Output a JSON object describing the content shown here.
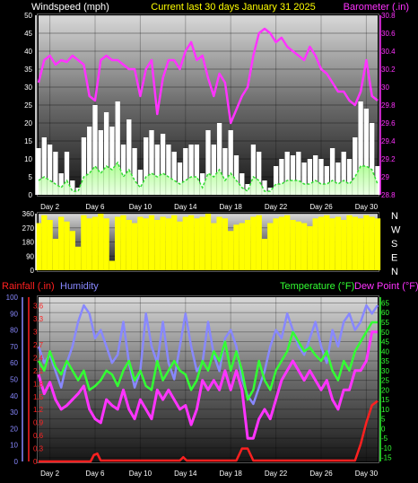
{
  "colors": {
    "wind_gust": "#ffffff",
    "wind_avg": "#33dd33",
    "barometer": "#ff33ff",
    "direction": "#ffff00",
    "temperature": "#33ff33",
    "dewpoint": "#ff33ff",
    "humidity": "#8888ff",
    "rainfall": "#ff2020",
    "title": "#ffff00"
  },
  "chart_data": [
    {
      "type": "area",
      "title": "Current last 30 days January 31 2025",
      "left_axis_label": "Windspeed (mph)",
      "right_axis_label": "Barometer (.in)",
      "left_ticks": [
        0,
        5,
        10,
        15,
        20,
        25,
        30,
        35,
        40,
        45,
        50
      ],
      "right_ticks": [
        28.8,
        29,
        29.2,
        29.4,
        29.6,
        29.8,
        30,
        30.2,
        30.4,
        30.6,
        30.8
      ],
      "ylim_left": [
        0,
        50
      ],
      "ylim_right": [
        28.8,
        30.8
      ],
      "x_ticks": [
        "Day 2",
        "Day 6",
        "Day 10",
        "Day 14",
        "Day 18",
        "Day 22",
        "Day 26",
        "Day 30"
      ],
      "x_range_days": [
        1,
        31
      ],
      "series": [
        {
          "name": "Barometer",
          "axis": "right",
          "x": [
            1,
            1.5,
            2,
            2.5,
            3,
            3.5,
            4,
            4.5,
            5,
            5.5,
            6,
            6.5,
            7,
            7.5,
            8,
            8.5,
            9,
            9.5,
            10,
            10.5,
            11,
            11.5,
            12,
            12.5,
            13,
            13.5,
            14,
            14.5,
            15,
            15.5,
            16,
            16.5,
            17,
            17.5,
            18,
            18.5,
            19,
            19.5,
            20,
            20.5,
            21,
            21.5,
            22,
            22.5,
            23,
            23.5,
            24,
            24.5,
            25,
            25.5,
            26,
            26.5,
            27,
            27.5,
            28,
            28.5,
            29,
            29.5,
            30,
            30.5,
            31
          ],
          "values": [
            30.05,
            30.3,
            30.35,
            30.25,
            30.3,
            30.28,
            30.35,
            30.3,
            30.25,
            29.9,
            29.85,
            30.3,
            30.35,
            30.3,
            30.3,
            30.25,
            30.2,
            30.2,
            29.9,
            30.2,
            30.3,
            29.7,
            30.1,
            30.3,
            30.3,
            30.2,
            30.4,
            30.5,
            30.3,
            30.35,
            30.1,
            29.9,
            30.15,
            30.05,
            29.6,
            29.75,
            29.9,
            30.0,
            30.35,
            30.6,
            30.65,
            30.6,
            30.5,
            30.55,
            30.45,
            30.4,
            30.35,
            30.3,
            30.45,
            30.35,
            30.2,
            30.15,
            30.05,
            29.95,
            29.95,
            29.85,
            29.8,
            29.95,
            30.3,
            29.9,
            29.85
          ]
        },
        {
          "name": "Wind gust",
          "axis": "left",
          "x": [
            1,
            1.5,
            2,
            2.5,
            3,
            3.5,
            4,
            4.5,
            5,
            5.5,
            6,
            6.5,
            7,
            7.5,
            8,
            8.5,
            9,
            9.5,
            10,
            10.5,
            11,
            11.5,
            12,
            12.5,
            13,
            13.5,
            14,
            14.5,
            15,
            15.5,
            16,
            16.5,
            17,
            17.5,
            18,
            18.5,
            19,
            19.5,
            20,
            20.5,
            21,
            21.5,
            22,
            22.5,
            23,
            23.5,
            24,
            24.5,
            25,
            25.5,
            26,
            26.5,
            27,
            27.5,
            28,
            28.5,
            29,
            29.5,
            30,
            30.5,
            31
          ],
          "values": [
            13,
            16,
            14,
            12,
            6,
            12,
            4,
            2,
            16,
            19,
            25,
            18,
            23,
            19,
            26,
            14,
            21,
            13,
            7,
            16,
            18,
            14,
            17,
            14,
            12,
            9,
            13,
            14,
            14,
            6,
            18,
            14,
            20,
            13,
            18,
            11,
            6,
            3,
            14,
            12,
            4,
            2,
            8,
            10,
            12,
            11,
            12,
            9,
            10,
            11,
            10,
            8,
            13,
            9,
            12,
            10,
            16,
            26,
            24,
            20,
            8
          ]
        },
        {
          "name": "Wind average",
          "axis": "left",
          "x": [
            1,
            1.5,
            2,
            2.5,
            3,
            3.5,
            4,
            4.5,
            5,
            5.5,
            6,
            6.5,
            7,
            7.5,
            8,
            8.5,
            9,
            9.5,
            10,
            10.5,
            11,
            11.5,
            12,
            12.5,
            13,
            13.5,
            14,
            14.5,
            15,
            15.5,
            16,
            16.5,
            17,
            17.5,
            18,
            18.5,
            19,
            19.5,
            20,
            20.5,
            21,
            21.5,
            22,
            22.5,
            23,
            23.5,
            24,
            24.5,
            25,
            25.5,
            26,
            26.5,
            27,
            27.5,
            28,
            28.5,
            29,
            29.5,
            30,
            30.5,
            31
          ],
          "values": [
            4,
            5,
            4,
            3,
            2,
            4,
            1,
            1,
            5,
            6,
            8,
            6,
            8,
            7,
            9,
            5,
            7,
            4,
            2,
            5,
            6,
            5,
            6,
            5,
            4,
            3,
            4,
            5,
            5,
            2,
            6,
            5,
            7,
            4,
            6,
            4,
            2,
            1,
            5,
            4,
            1,
            1,
            3,
            3,
            4,
            4,
            4,
            3,
            3,
            4,
            3,
            3,
            4,
            3,
            4,
            3,
            5,
            8,
            8,
            7,
            3
          ]
        }
      ]
    },
    {
      "type": "bar",
      "left_ticks": [
        0,
        90,
        180,
        270,
        360
      ],
      "right_labels": [
        "N",
        "W",
        "S",
        "E",
        "N"
      ],
      "ylim": [
        0,
        360
      ],
      "series": [
        {
          "name": "Wind direction",
          "x": [
            1,
            1.5,
            2,
            2.5,
            3,
            3.5,
            4,
            4.5,
            5,
            5.5,
            6,
            6.5,
            7,
            7.5,
            8,
            8.5,
            9,
            9.5,
            10,
            10.5,
            11,
            11.5,
            12,
            12.5,
            13,
            13.5,
            14,
            14.5,
            15,
            15.5,
            16,
            16.5,
            17,
            17.5,
            18,
            18.5,
            19,
            19.5,
            20,
            20.5,
            21,
            21.5,
            22,
            22.5,
            23,
            23.5,
            24,
            24.5,
            25,
            25.5,
            26,
            26.5,
            27,
            27.5,
            28,
            28.5,
            29,
            29.5,
            30,
            30.5,
            31
          ],
          "values": [
            300,
            350,
            320,
            200,
            340,
            310,
            250,
            150,
            350,
            330,
            340,
            360,
            330,
            60,
            340,
            350,
            320,
            300,
            340,
            330,
            350,
            320,
            340,
            330,
            350,
            310,
            340,
            350,
            330,
            340,
            360,
            300,
            340,
            330,
            250,
            290,
            300,
            320,
            340,
            350,
            200,
            300,
            330,
            340,
            350,
            320,
            310,
            300,
            280,
            330,
            340,
            350,
            330,
            340,
            320,
            350,
            340,
            330,
            350,
            340,
            330
          ]
        }
      ]
    },
    {
      "type": "line",
      "rainfall_label": "Rainfall (.in)",
      "humidity_label": "Humidity",
      "temperature_label": "Temperature (°F)",
      "dewpoint_label": "Dew Point (°F)",
      "humidity_ticks": [
        0,
        10,
        20,
        30,
        40,
        50,
        60,
        70,
        80,
        90,
        100
      ],
      "rain_ticks": [
        0,
        0.3,
        0.6,
        0.9,
        1.2,
        1.5,
        1.8,
        2.1,
        2.4,
        2.7,
        3,
        3.3,
        3.6
      ],
      "temp_ticks": [
        -15,
        -10,
        -5,
        0,
        5,
        10,
        15,
        20,
        25,
        30,
        35,
        40,
        45,
        50,
        55,
        60,
        65
      ],
      "ylim_temp": [
        -17,
        68
      ],
      "ylim_rain": [
        0,
        3.8
      ],
      "ylim_humidity": [
        0,
        100
      ],
      "series": [
        {
          "name": "Humidity",
          "x": [
            1,
            1.5,
            2,
            2.5,
            3,
            3.5,
            4,
            4.5,
            5,
            5.5,
            6,
            6.5,
            7,
            7.5,
            8,
            8.5,
            9,
            9.5,
            10,
            10.5,
            11,
            11.5,
            12,
            12.5,
            13,
            13.5,
            14,
            14.5,
            15,
            15.5,
            16,
            16.5,
            17,
            17.5,
            18,
            18.5,
            19,
            19.5,
            20,
            20.5,
            21,
            21.5,
            22,
            22.5,
            23,
            23.5,
            24,
            24.5,
            25,
            25.5,
            26,
            26.5,
            27,
            27.5,
            28,
            28.5,
            29,
            29.5,
            30,
            30.5,
            31
          ],
          "values": [
            70,
            60,
            65,
            55,
            45,
            60,
            70,
            85,
            95,
            90,
            75,
            80,
            70,
            60,
            65,
            85,
            60,
            45,
            55,
            90,
            70,
            60,
            85,
            60,
            50,
            70,
            90,
            70,
            55,
            60,
            85,
            65,
            55,
            75,
            80,
            70,
            50,
            40,
            35,
            45,
            55,
            70,
            80,
            75,
            90,
            80,
            70,
            65,
            75,
            85,
            70,
            60,
            80,
            70,
            85,
            90,
            80,
            85,
            95,
            90,
            95
          ]
        },
        {
          "name": "Temperature",
          "x": [
            1,
            1.5,
            2,
            2.5,
            3,
            3.5,
            4,
            4.5,
            5,
            5.5,
            6,
            6.5,
            7,
            7.5,
            8,
            8.5,
            9,
            9.5,
            10,
            10.5,
            11,
            11.5,
            12,
            12.5,
            13,
            13.5,
            14,
            14.5,
            15,
            15.5,
            16,
            16.5,
            17,
            17.5,
            18,
            18.5,
            19,
            19.5,
            20,
            20.5,
            21,
            21.5,
            22,
            22.5,
            23,
            23.5,
            24,
            24.5,
            25,
            25.5,
            26,
            26.5,
            27,
            27.5,
            28,
            28.5,
            29,
            29.5,
            30,
            30.5,
            31
          ],
          "values": [
            35,
            30,
            40,
            32,
            28,
            35,
            30,
            25,
            30,
            20,
            22,
            25,
            30,
            28,
            22,
            30,
            35,
            25,
            30,
            22,
            20,
            35,
            25,
            30,
            35,
            30,
            28,
            20,
            25,
            35,
            30,
            40,
            35,
            45,
            30,
            40,
            30,
            15,
            20,
            35,
            25,
            20,
            30,
            35,
            40,
            50,
            45,
            40,
            42,
            38,
            35,
            40,
            30,
            25,
            35,
            30,
            40,
            45,
            50,
            55,
            55
          ]
        },
        {
          "name": "Dew Point",
          "x": [
            1,
            1.5,
            2,
            2.5,
            3,
            3.5,
            4,
            4.5,
            5,
            5.5,
            6,
            6.5,
            7,
            7.5,
            8,
            8.5,
            9,
            9.5,
            10,
            10.5,
            11,
            11.5,
            12,
            12.5,
            13,
            13.5,
            14,
            14.5,
            15,
            15.5,
            16,
            16.5,
            17,
            17.5,
            18,
            18.5,
            19,
            19.5,
            20,
            20.5,
            21,
            21.5,
            22,
            22.5,
            23,
            23.5,
            24,
            24.5,
            25,
            25.5,
            26,
            26.5,
            27,
            27.5,
            28,
            28.5,
            29,
            29.5,
            30,
            30.5,
            31
          ],
          "values": [
            28,
            18,
            24,
            15,
            10,
            12,
            15,
            18,
            22,
            10,
            5,
            3,
            15,
            12,
            10,
            20,
            10,
            5,
            15,
            10,
            5,
            20,
            15,
            20,
            15,
            10,
            12,
            2,
            10,
            25,
            20,
            25,
            20,
            30,
            20,
            30,
            20,
            -5,
            -5,
            5,
            10,
            5,
            15,
            25,
            30,
            35,
            30,
            25,
            30,
            25,
            20,
            25,
            15,
            10,
            20,
            20,
            30,
            30,
            35,
            50,
            50
          ]
        },
        {
          "name": "Rainfall",
          "x": [
            1,
            5.6,
            5.9,
            6.2,
            6.5,
            7,
            13.5,
            13.8,
            14.1,
            18.5,
            19,
            19.5,
            20,
            29,
            29.5,
            30,
            30.5,
            31
          ],
          "values": [
            0,
            0,
            0.15,
            0.18,
            0.02,
            0.02,
            0.02,
            0.1,
            0.02,
            0.02,
            0.3,
            0.3,
            0.02,
            0.02,
            0.4,
            0.9,
            1.3,
            1.4
          ]
        }
      ]
    }
  ]
}
